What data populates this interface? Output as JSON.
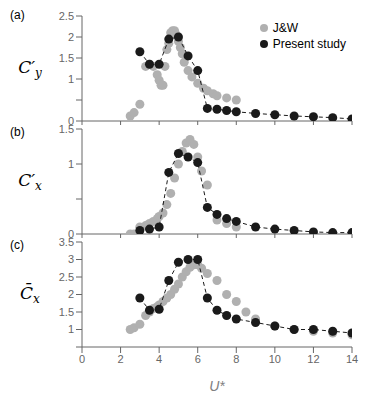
{
  "chart_data": [
    {
      "type": "scatter",
      "title": "(a)",
      "ylabel": "C′y",
      "xlim": [
        0,
        14
      ],
      "xticks": [
        0,
        2,
        4,
        6,
        8,
        10,
        12,
        14
      ],
      "ylim": [
        0,
        2.5
      ],
      "yticks": [
        0,
        {
          "value": 0.5,
          "label": ""
        },
        1,
        1.5,
        2,
        2.5
      ],
      "tick_labels": "y",
      "grid": false,
      "legend": "upper right",
      "series": [
        {
          "name": "J&W",
          "color": "#b0b0b0",
          "marker": "circle",
          "x": [
            2.5,
            2.7,
            3.0,
            3.3,
            3.5,
            3.7,
            3.9,
            4.0,
            4.1,
            4.2,
            4.3,
            4.4,
            4.5,
            4.6,
            4.7,
            4.8,
            4.9,
            5.0,
            5.1,
            5.2,
            5.3,
            5.5,
            5.7,
            6.0,
            6.3,
            6.5,
            6.8,
            7.0,
            7.5,
            8.0
          ],
          "values": [
            0.12,
            0.2,
            0.4,
            1.3,
            1.35,
            1.3,
            1.1,
            0.97,
            0.85,
            0.85,
            1.3,
            1.7,
            1.85,
            2.1,
            2.15,
            2.15,
            2.05,
            1.9,
            1.75,
            1.6,
            1.4,
            1.2,
            1.05,
            0.9,
            0.78,
            0.72,
            0.65,
            0.6,
            0.55,
            0.5
          ]
        },
        {
          "name": "Present study",
          "color": "#1a1a1a",
          "marker": "circle",
          "line_style": "dashed",
          "x": [
            3.0,
            3.5,
            4.0,
            4.5,
            5.0,
            5.5,
            6.0,
            6.5,
            7.0,
            7.5,
            8.0,
            9.0,
            10.0,
            11.0,
            12.0,
            13.0,
            14.0
          ],
          "values": [
            1.65,
            1.35,
            1.35,
            1.95,
            2.0,
            1.55,
            1.2,
            0.3,
            0.28,
            0.25,
            0.22,
            0.18,
            0.15,
            0.12,
            0.1,
            0.08,
            0.05
          ]
        }
      ]
    },
    {
      "type": "scatter",
      "title": "(b)",
      "ylabel": "C′x",
      "xlim": [
        0,
        14
      ],
      "xticks": [
        0,
        2,
        4,
        6,
        8,
        10,
        12,
        14
      ],
      "ylim": [
        0,
        1.5
      ],
      "yticks": [
        0,
        {
          "value": 0.5,
          "label": ""
        },
        1,
        1.5
      ],
      "tick_labels": "y",
      "grid": false,
      "series": [
        {
          "name": "J&W",
          "color": "#b0b0b0",
          "marker": "circle",
          "x": [
            2.5,
            2.7,
            3.0,
            3.3,
            3.5,
            3.7,
            3.9,
            4.0,
            4.2,
            4.4,
            4.6,
            4.8,
            5.0,
            5.2,
            5.4,
            5.6,
            5.8,
            6.0,
            6.2,
            6.5,
            7.0,
            7.5,
            8.0
          ],
          "values": [
            0.0,
            0.0,
            0.1,
            0.12,
            0.15,
            0.18,
            0.22,
            0.25,
            0.3,
            0.42,
            0.58,
            0.8,
            1.0,
            1.18,
            1.3,
            1.35,
            1.28,
            1.1,
            0.9,
            0.7,
            0.2,
            0.15,
            0.1
          ]
        },
        {
          "name": "Present study",
          "color": "#1a1a1a",
          "marker": "circle",
          "line_style": "dashed",
          "x": [
            3.0,
            3.5,
            4.0,
            4.5,
            5.0,
            5.5,
            6.0,
            6.5,
            7.0,
            7.5,
            8.0,
            9.0,
            10.0,
            11.0,
            12.0,
            13.0,
            14.0
          ],
          "values": [
            0.05,
            0.07,
            0.1,
            0.88,
            1.15,
            1.1,
            1.02,
            0.38,
            0.28,
            0.22,
            0.18,
            0.1,
            0.07,
            0.05,
            0.03,
            0.02,
            0.02
          ]
        }
      ]
    },
    {
      "type": "scatter",
      "title": "(c)",
      "ylabel": "C̄x",
      "xlabel": "U*",
      "xlim": [
        0,
        14
      ],
      "xticks": [
        0,
        2,
        4,
        6,
        8,
        10,
        12,
        14
      ],
      "ylim": [
        0.5,
        3.5
      ],
      "yticks": [
        {
          "value": 0.5,
          "label": ""
        },
        1,
        1.5,
        2,
        2.5,
        3,
        3.5
      ],
      "grid": false,
      "series": [
        {
          "name": "J&W",
          "color": "#b0b0b0",
          "marker": "circle",
          "x": [
            2.5,
            2.7,
            3.0,
            3.3,
            3.5,
            3.7,
            3.9,
            4.0,
            4.2,
            4.4,
            4.6,
            4.8,
            5.0,
            5.2,
            5.4,
            5.6,
            5.8,
            6.0,
            6.2,
            6.5,
            7.0,
            7.5,
            8.0,
            8.5,
            9.0,
            10.0,
            11.0,
            12.0,
            13.0,
            14.0
          ],
          "values": [
            1.0,
            1.05,
            1.15,
            1.4,
            1.5,
            1.6,
            1.65,
            1.7,
            1.8,
            1.9,
            2.0,
            2.15,
            2.3,
            2.5,
            2.65,
            2.78,
            2.85,
            2.85,
            2.75,
            2.6,
            2.4,
            2.0,
            1.8,
            1.5,
            1.3,
            1.1,
            1.0,
            0.95,
            0.9,
            0.85
          ]
        },
        {
          "name": "Present study",
          "color": "#1a1a1a",
          "marker": "circle",
          "line_style": "dashed",
          "x": [
            3.0,
            3.5,
            4.0,
            4.5,
            5.0,
            5.5,
            6.0,
            6.5,
            7.0,
            7.5,
            8.0,
            9.0,
            10.0,
            11.0,
            12.0,
            13.0,
            14.0
          ],
          "values": [
            1.9,
            1.55,
            1.58,
            2.4,
            2.92,
            3.0,
            3.0,
            1.9,
            1.55,
            1.4,
            1.3,
            1.2,
            1.1,
            1.0,
            1.0,
            0.95,
            0.9
          ]
        }
      ]
    }
  ]
}
